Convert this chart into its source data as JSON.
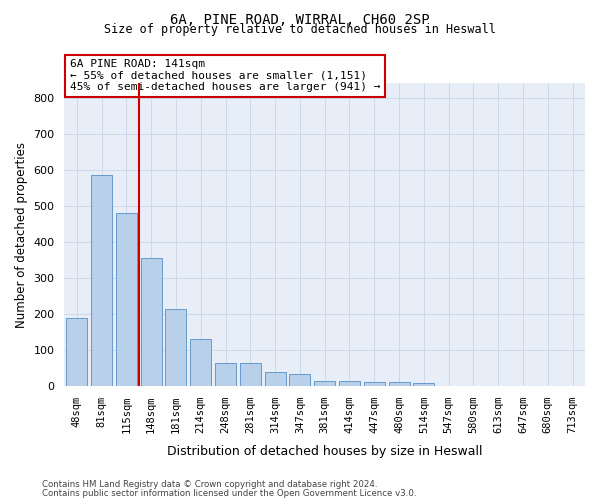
{
  "title_line1": "6A, PINE ROAD, WIRRAL, CH60 2SP",
  "title_line2": "Size of property relative to detached houses in Heswall",
  "xlabel": "Distribution of detached houses by size in Heswall",
  "ylabel": "Number of detached properties",
  "bin_labels": [
    "48sqm",
    "81sqm",
    "115sqm",
    "148sqm",
    "181sqm",
    "214sqm",
    "248sqm",
    "281sqm",
    "314sqm",
    "347sqm",
    "381sqm",
    "414sqm",
    "447sqm",
    "480sqm",
    "514sqm",
    "547sqm",
    "580sqm",
    "613sqm",
    "647sqm",
    "680sqm",
    "713sqm"
  ],
  "bar_values": [
    190,
    585,
    480,
    355,
    215,
    130,
    63,
    63,
    38,
    33,
    15,
    15,
    11,
    11,
    8,
    0,
    0,
    0,
    0,
    0,
    0
  ],
  "bar_color": "#b8d0ea",
  "bar_edge_color": "#6699cc",
  "bar_width": 0.85,
  "ylim": [
    0,
    840
  ],
  "yticks": [
    0,
    100,
    200,
    300,
    400,
    500,
    600,
    700,
    800
  ],
  "red_line_after_bin": 2,
  "annotation_text": "6A PINE ROAD: 141sqm\n← 55% of detached houses are smaller (1,151)\n45% of semi-detached houses are larger (941) →",
  "annotation_box_color": "white",
  "annotation_box_edge_color": "#cc0000",
  "red_line_color": "#cc0000",
  "grid_color": "#c8d4e8",
  "background_color": "#e8eef8",
  "footer_line1": "Contains HM Land Registry data © Crown copyright and database right 2024.",
  "footer_line2": "Contains public sector information licensed under the Open Government Licence v3.0."
}
